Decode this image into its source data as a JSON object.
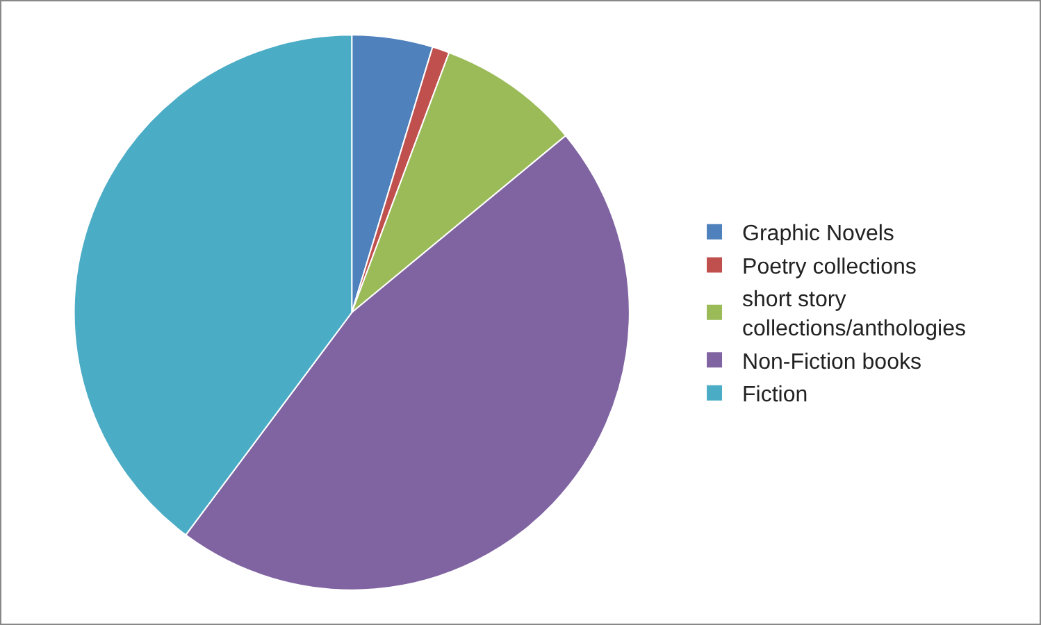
{
  "chart_data": {
    "type": "pie",
    "categories": [
      "Graphic Novels",
      "Poetry collections",
      "short story collections/anthologies",
      "Non-Fiction books",
      "Fiction"
    ],
    "values": [
      4.7,
      1.0,
      8.3,
      46.2,
      39.8
    ],
    "colors": [
      "#4f81bd",
      "#c0504d",
      "#9bbb59",
      "#8064a2",
      "#4bacc6"
    ],
    "legend": "right"
  }
}
